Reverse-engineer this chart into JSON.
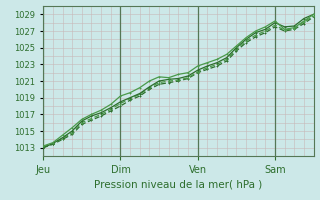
{
  "title": "",
  "xlabel": "Pression niveau de la mer( hPa )",
  "ylabel": "",
  "bg_color": "#cce8e8",
  "grid_color": "#c8b8b8",
  "line_color_dark": "#2d6e2d",
  "line_color_light": "#4a9a4a",
  "ylim": [
    1012,
    1030
  ],
  "yticks": [
    1013,
    1015,
    1017,
    1019,
    1021,
    1023,
    1025,
    1027,
    1029
  ],
  "day_labels": [
    "Jeu",
    "Dim",
    "Ven",
    "Sam"
  ],
  "day_positions": [
    0,
    48,
    96,
    144
  ],
  "total_hours": 168,
  "series1_x": [
    0,
    6,
    12,
    18,
    24,
    30,
    36,
    42,
    48,
    54,
    60,
    66,
    72,
    78,
    84,
    90,
    96,
    102,
    108,
    114,
    120,
    126,
    132,
    138,
    144,
    150,
    156,
    162,
    168
  ],
  "series1_y": [
    1013.0,
    1013.5,
    1014.2,
    1015.0,
    1016.2,
    1016.8,
    1017.2,
    1017.8,
    1018.5,
    1019.0,
    1019.5,
    1020.3,
    1021.0,
    1021.2,
    1021.3,
    1021.6,
    1022.3,
    1022.8,
    1023.2,
    1023.8,
    1025.0,
    1026.0,
    1026.8,
    1027.2,
    1028.0,
    1027.5,
    1027.6,
    1028.5,
    1029.0
  ],
  "series2_x": [
    0,
    6,
    12,
    18,
    24,
    30,
    36,
    42,
    48,
    54,
    60,
    66,
    72,
    78,
    84,
    90,
    96,
    102,
    108,
    114,
    120,
    126,
    132,
    138,
    144,
    150,
    156,
    162,
    168
  ],
  "series2_y": [
    1013.2,
    1013.6,
    1014.5,
    1015.4,
    1016.4,
    1017.0,
    1017.5,
    1018.2,
    1019.2,
    1019.6,
    1020.2,
    1021.0,
    1021.5,
    1021.4,
    1021.8,
    1022.0,
    1022.8,
    1023.2,
    1023.6,
    1024.2,
    1025.2,
    1026.2,
    1027.0,
    1027.5,
    1028.2,
    1027.2,
    1027.4,
    1028.2,
    1029.0
  ],
  "series3_x": [
    0,
    6,
    12,
    18,
    24,
    30,
    36,
    42,
    48,
    54,
    60,
    66,
    72,
    78,
    84,
    90,
    96,
    102,
    108,
    114,
    120,
    126,
    132,
    138,
    144,
    150,
    156,
    162,
    168
  ],
  "series3_y": [
    1013.0,
    1013.4,
    1014.0,
    1014.6,
    1015.8,
    1016.3,
    1016.8,
    1017.4,
    1018.0,
    1018.7,
    1019.2,
    1020.0,
    1020.6,
    1020.8,
    1021.0,
    1021.3,
    1022.0,
    1022.4,
    1022.8,
    1023.4,
    1024.6,
    1025.6,
    1026.3,
    1026.8,
    1027.5,
    1027.0,
    1027.2,
    1027.9,
    1028.7
  ],
  "series4_x": [
    0,
    6,
    12,
    18,
    24,
    30,
    36,
    42,
    48,
    54,
    60,
    66,
    72,
    78,
    84,
    90,
    96,
    102,
    108,
    114,
    120,
    126,
    132,
    138,
    144,
    150,
    156,
    162,
    168
  ],
  "series4_y": [
    1013.1,
    1013.5,
    1014.1,
    1014.8,
    1016.0,
    1016.5,
    1017.0,
    1017.6,
    1018.3,
    1018.9,
    1019.4,
    1020.2,
    1020.8,
    1021.0,
    1021.1,
    1021.4,
    1022.1,
    1022.6,
    1023.0,
    1023.6,
    1024.8,
    1025.8,
    1026.5,
    1027.0,
    1027.7,
    1027.1,
    1027.3,
    1028.1,
    1028.8
  ]
}
